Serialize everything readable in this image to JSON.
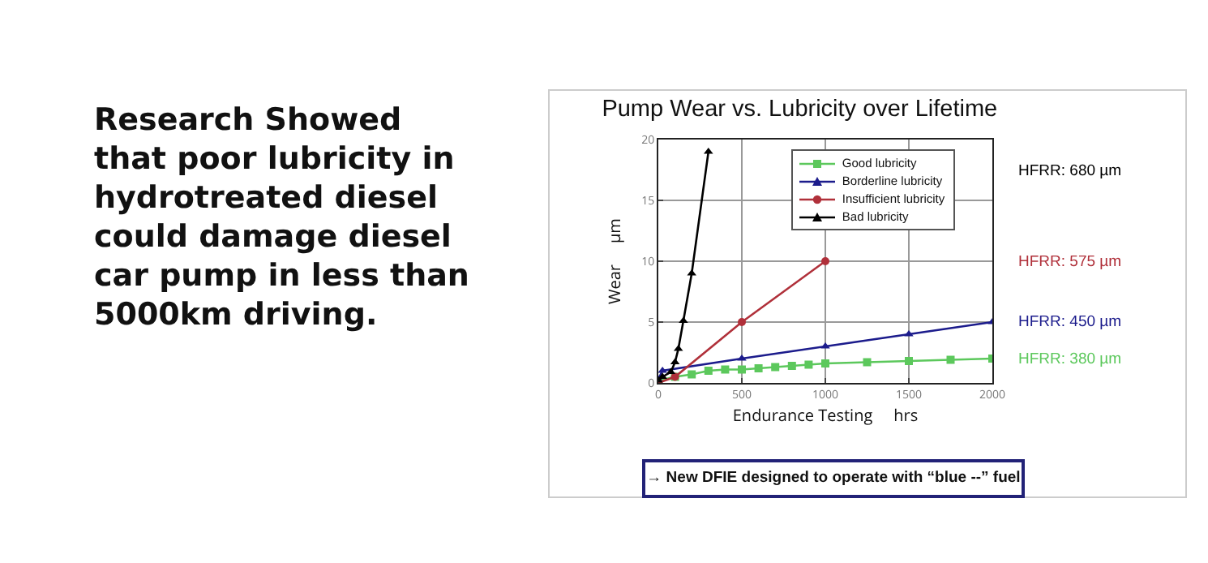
{
  "chart_data": {
    "type": "line",
    "title": "Pump Wear vs. Lubricity over Lifetime",
    "xlabel": "Endurance Testing     hrs",
    "ylabel": "Wear     µm",
    "xlim": [
      0,
      2000
    ],
    "xticks": [
      0,
      500,
      1000,
      1500,
      2000
    ],
    "ylim": [
      0,
      20
    ],
    "yticks": [
      0,
      5,
      10,
      15,
      20
    ],
    "grid": true,
    "legend": "top",
    "line_style": "solid",
    "series": [
      {
        "name": "Good lubricity",
        "color": "#5cc85c",
        "marker": "square",
        "x": [
          0,
          100,
          200,
          300,
          400,
          500,
          600,
          700,
          800,
          900,
          1000,
          1250,
          1500,
          1750,
          2000
        ],
        "values": [
          0.2,
          0.5,
          0.7,
          1.0,
          1.1,
          1.1,
          1.2,
          1.3,
          1.4,
          1.5,
          1.6,
          1.7,
          1.8,
          1.9,
          2.0
        ]
      },
      {
        "name": "Borderline lubricity",
        "color": "#1c1c8c",
        "marker": "triangle",
        "x": [
          0,
          25,
          500,
          1000,
          1500,
          2000
        ],
        "values": [
          0.3,
          1.0,
          2.0,
          3.0,
          4.0,
          5.0
        ]
      },
      {
        "name": "Insufficient lubricity",
        "color": "#b0303a",
        "marker": "circle",
        "x": [
          0,
          100,
          500,
          1000
        ],
        "values": [
          0,
          0.5,
          5,
          10
        ]
      },
      {
        "name": "Bad lubricity",
        "color": "#000000",
        "marker": "triangle",
        "x": [
          0,
          25,
          75,
          100,
          120,
          150,
          200,
          300
        ],
        "values": [
          0.2,
          0.5,
          0.9,
          1.7,
          2.8,
          5.1,
          9,
          19
        ]
      }
    ],
    "annotations": [
      "Research Showed that poor lubricity in hydrotreated diesel could damage diesel car pump in less than 5000km driving.",
      "→ New DFIE designed to operate with “blue --” fuel",
      "HFRR: 680 µm",
      "HFRR: 575 µm",
      {
        "text": "HFRR: 450 µm",
        "x": 2000,
        "y": 5
      },
      {
        "text": "HFRR: 380 µm",
        "x": 2000,
        "y": 2
      }
    ]
  }
}
